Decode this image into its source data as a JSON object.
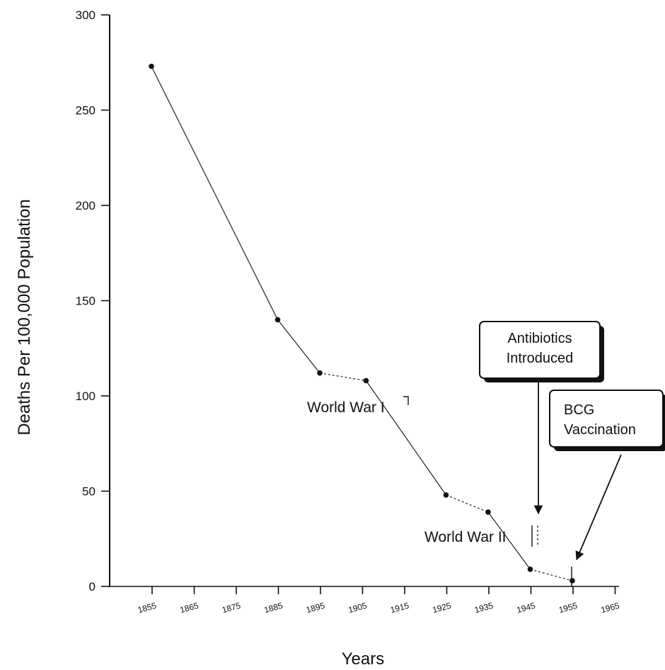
{
  "chart_data": {
    "type": "line",
    "title": "",
    "xlabel": "Years",
    "ylabel": "Deaths Per 100,000 Population",
    "ylim": [
      0,
      300
    ],
    "y_ticks": [
      "0",
      "50",
      "100",
      "150",
      "200",
      "250",
      "300"
    ],
    "x_ticks": [
      "1855",
      "1865",
      "1875",
      "1885",
      "1895",
      "1905",
      "1915",
      "1925",
      "1935",
      "1945",
      "1955",
      "1965"
    ],
    "grid": false,
    "series": [
      {
        "name": "",
        "x": [
          1865,
          1895,
          1905,
          1916,
          1935,
          1945,
          1955,
          1965
        ],
        "y": [
          273,
          140,
          112,
          108,
          48,
          39,
          9,
          3
        ],
        "dashed_segments": [
          [
            1905,
            1916
          ],
          [
            1935,
            1945
          ],
          [
            1955,
            1965
          ]
        ]
      }
    ],
    "annotations": [
      {
        "label": "World War I",
        "x": 1916,
        "y": 100
      },
      {
        "label": "World War II",
        "x": 1946,
        "y": 28
      },
      {
        "label": "Antibiotics Introduced",
        "lines": [
          "Antibiotics",
          "Introduced"
        ],
        "x": 1946,
        "y": 38
      },
      {
        "label": "BCG Vaccination",
        "lines": [
          "BCG",
          "Vaccination"
        ],
        "x": 1955,
        "y": 14
      }
    ]
  }
}
